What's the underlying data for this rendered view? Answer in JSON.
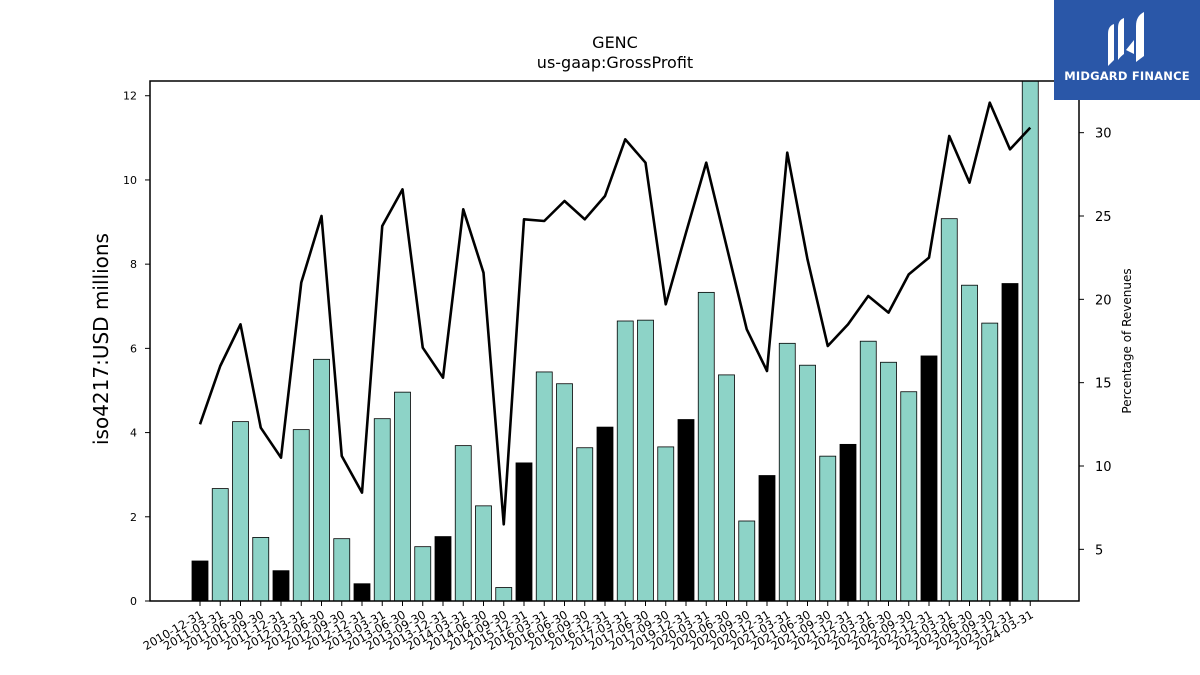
{
  "brand": {
    "name": "MIDGARD FINANCE",
    "bg_color": "#2a57a8"
  },
  "chart_data": {
    "type": "bar",
    "title": "GENC",
    "subtitle": "us-gaap:GrossProfit",
    "ylabel": "iso4217:USD  millions",
    "y2label": "Percentage of Revenues",
    "ylim": [
      0,
      12.35
    ],
    "y2lim": [
      1.9,
      33.1
    ],
    "yticks": [
      0,
      2,
      4,
      6,
      8,
      10,
      12
    ],
    "y2ticks": [
      5,
      10,
      15,
      20,
      25,
      30
    ],
    "bar_color_quarter": "#8dd3c7",
    "bar_color_annual": "#000000",
    "line_color": "#000000",
    "categories": [
      "2010-12-31",
      "2011-03-31",
      "2011-06-30",
      "2011-09-30",
      "2011-12-31",
      "2012-03-31",
      "2012-06-30",
      "2012-09-30",
      "2012-12-31",
      "2013-03-31",
      "2013-06-30",
      "2013-09-30",
      "2013-12-31",
      "2014-03-31",
      "2014-06-30",
      "2014-09-30",
      "2015-12-31",
      "2016-03-31",
      "2016-06-30",
      "2016-09-30",
      "2016-12-31",
      "2017-03-31",
      "2017-06-30",
      "2017-09-30",
      "2019-12-31",
      "2020-03-31",
      "2020-06-30",
      "2020-09-30",
      "2020-12-31",
      "2021-03-31",
      "2021-06-30",
      "2021-09-30",
      "2021-12-31",
      "2022-03-31",
      "2022-06-30",
      "2022-09-30",
      "2022-12-31",
      "2023-03-31",
      "2023-06-30",
      "2023-09-30",
      "2023-12-31",
      "2024-03-31"
    ],
    "series": [
      {
        "type": "bar",
        "values": [
          0.95,
          2.67,
          4.26,
          1.51,
          0.72,
          4.07,
          5.74,
          1.48,
          0.41,
          4.33,
          4.96,
          1.29,
          1.53,
          3.69,
          2.26,
          0.32,
          3.28,
          5.44,
          5.16,
          3.64,
          4.13,
          6.65,
          6.67,
          3.66,
          4.31,
          7.33,
          5.37,
          1.9,
          2.98,
          6.12,
          5.6,
          3.44,
          3.72,
          6.17,
          5.67,
          4.97,
          5.82,
          9.08,
          7.5,
          6.6,
          7.54,
          12.35
        ],
        "annual": [
          true,
          false,
          false,
          false,
          true,
          false,
          false,
          false,
          true,
          false,
          false,
          false,
          true,
          false,
          false,
          false,
          true,
          false,
          false,
          false,
          true,
          false,
          false,
          false,
          true,
          false,
          false,
          false,
          true,
          false,
          false,
          false,
          true,
          false,
          false,
          false,
          true,
          false,
          false,
          false,
          true,
          false
        ]
      },
      {
        "type": "line",
        "axis": "right",
        "values": [
          12.5,
          16.0,
          18.5,
          12.3,
          10.5,
          21.0,
          25.0,
          10.6,
          8.4,
          24.4,
          26.6,
          17.1,
          15.3,
          25.4,
          21.6,
          6.5,
          24.8,
          24.7,
          25.9,
          24.8,
          26.2,
          29.6,
          28.2,
          19.7,
          24.0,
          28.2,
          23.2,
          18.2,
          15.7,
          28.8,
          22.4,
          17.2,
          18.5,
          20.2,
          19.2,
          21.5,
          22.5,
          29.8,
          27.0,
          31.8,
          29.0,
          30.3
        ]
      }
    ]
  }
}
